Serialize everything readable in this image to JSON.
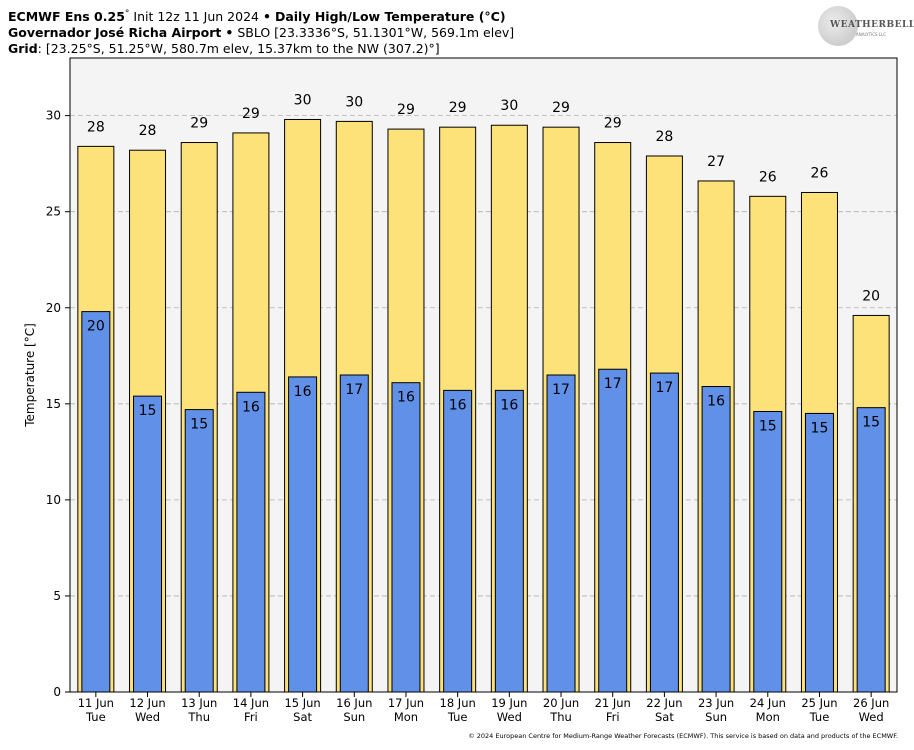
{
  "header": {
    "model": "ECMWF Ens 0.25",
    "deg": "°",
    "init": "Init 12z 11 Jun 2024",
    "bullet": "•",
    "product": "Daily High/Low Temperature (°C)",
    "location_name": "Governador José Richa Airport",
    "location_info": "SBLO [23.3336°S, 51.1301°W, 569.1m elev]",
    "grid_label": "Grid",
    "grid_info": ": [23.25°S, 51.25°W, 580.7m elev, 15.37km to the NW (307.2)°]"
  },
  "logo": {
    "text": "WEATHERBELL",
    "sub": "ANALYTICS LLC"
  },
  "footer": {
    "text": "© 2024 European Centre for Medium-Range Weather Forecasts (ECMWF). This service is based on data and products of the ECMWF."
  },
  "colors": {
    "high": "#fde27a",
    "low": "#6090e8",
    "plot_bg": "#f4f4f4",
    "grid": "#b0b0b0"
  },
  "chart_data": {
    "type": "bar",
    "title": "Daily High/Low Temperature (°C)",
    "xlabel": "",
    "ylabel": "Temperature [°C]",
    "ylim": [
      0,
      33
    ],
    "yticks": [
      0,
      5,
      10,
      15,
      20,
      25,
      30
    ],
    "grid": true,
    "categories": [
      {
        "date": "11 Jun",
        "day": "Tue"
      },
      {
        "date": "12 Jun",
        "day": "Wed"
      },
      {
        "date": "13 Jun",
        "day": "Thu"
      },
      {
        "date": "14 Jun",
        "day": "Fri"
      },
      {
        "date": "15 Jun",
        "day": "Sat"
      },
      {
        "date": "16 Jun",
        "day": "Sun"
      },
      {
        "date": "17 Jun",
        "day": "Mon"
      },
      {
        "date": "18 Jun",
        "day": "Tue"
      },
      {
        "date": "19 Jun",
        "day": "Wed"
      },
      {
        "date": "20 Jun",
        "day": "Thu"
      },
      {
        "date": "21 Jun",
        "day": "Fri"
      },
      {
        "date": "22 Jun",
        "day": "Sat"
      },
      {
        "date": "23 Jun",
        "day": "Sun"
      },
      {
        "date": "24 Jun",
        "day": "Mon"
      },
      {
        "date": "25 Jun",
        "day": "Tue"
      },
      {
        "date": "26 Jun",
        "day": "Wed"
      }
    ],
    "series": [
      {
        "name": "High",
        "values": [
          28.4,
          28.2,
          28.6,
          29.1,
          29.8,
          29.7,
          29.3,
          29.4,
          29.5,
          29.4,
          28.6,
          27.9,
          26.6,
          25.8,
          26.0,
          19.6
        ],
        "labels": [
          "28",
          "28",
          "29",
          "29",
          "30",
          "30",
          "29",
          "29",
          "30",
          "29",
          "29",
          "28",
          "27",
          "26",
          "26",
          "20"
        ]
      },
      {
        "name": "Low",
        "values": [
          19.8,
          15.4,
          14.7,
          15.6,
          16.4,
          16.5,
          16.1,
          15.7,
          15.7,
          16.5,
          16.8,
          16.6,
          15.9,
          14.6,
          14.5,
          14.8
        ],
        "labels": [
          "20",
          "15",
          "15",
          "16",
          "16",
          "17",
          "16",
          "16",
          "16",
          "17",
          "17",
          "17",
          "16",
          "15",
          "15",
          "15"
        ]
      }
    ]
  }
}
